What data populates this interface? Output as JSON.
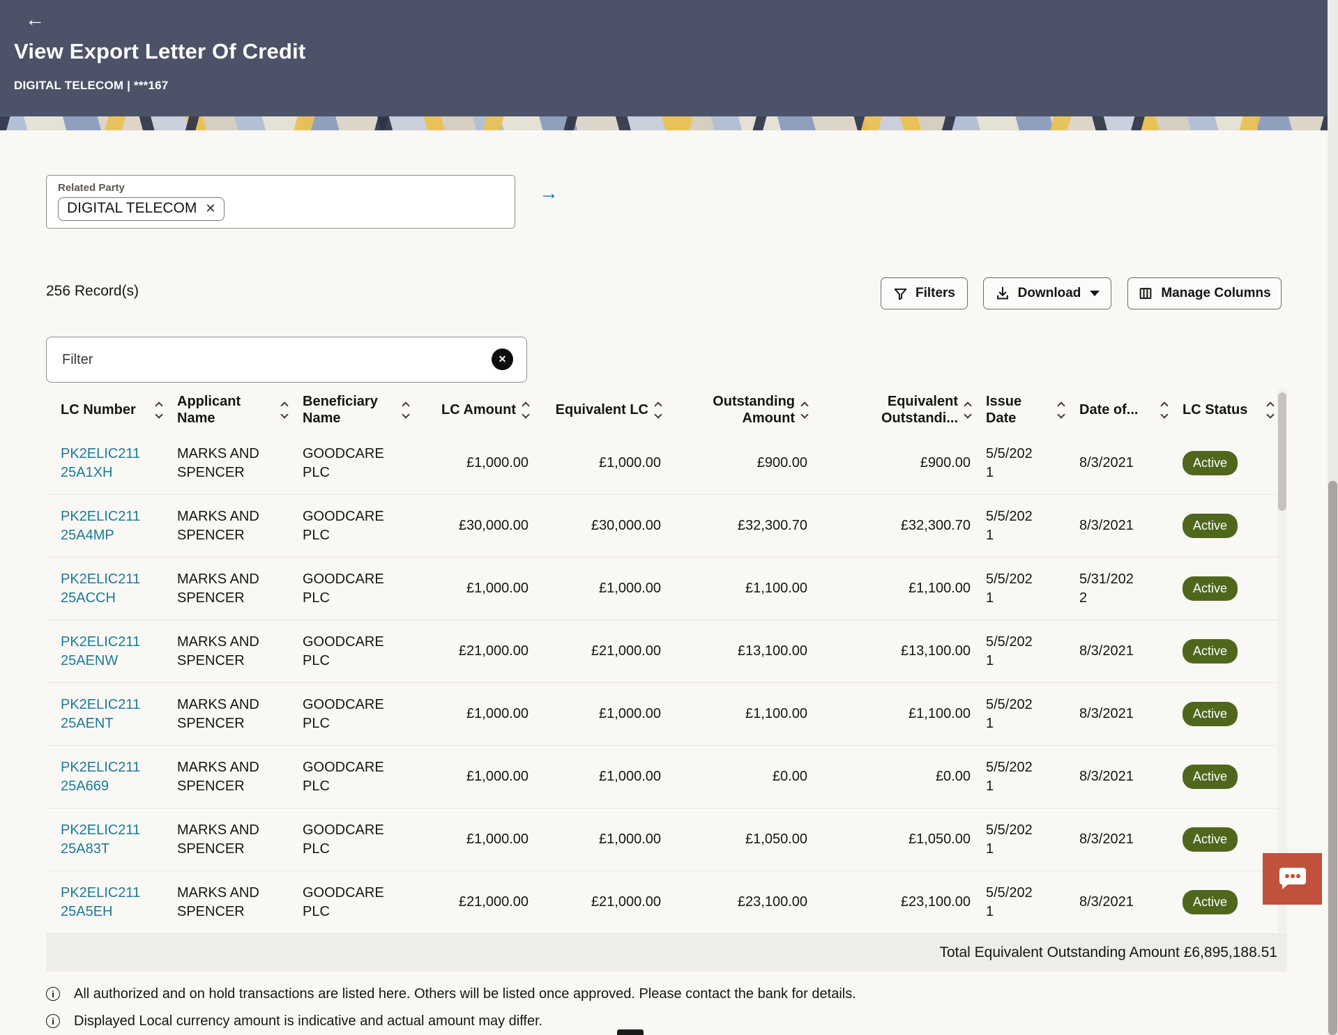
{
  "header": {
    "back_icon": "←",
    "title": "View Export Letter Of Credit",
    "subtitle": "DIGITAL TELECOM | ***167"
  },
  "filters_panel": {
    "related_party_label": "Related Party",
    "related_party_value": "DIGITAL TELECOM",
    "chip_remove_icon": "✕",
    "apply_arrow_icon": "→"
  },
  "toolbar": {
    "record_count": "256 Record(s)",
    "filters_label": "Filters",
    "download_label": "Download",
    "manage_columns_label": "Manage Columns"
  },
  "filter_box": {
    "placeholder": "Filter",
    "clear_icon": "✕"
  },
  "table": {
    "columns": [
      {
        "key": "lc_number",
        "label": "LC Number",
        "align": "left"
      },
      {
        "key": "applicant",
        "label": "Applicant Name",
        "align": "left"
      },
      {
        "key": "beneficiary",
        "label": "Beneficiary Name",
        "align": "left"
      },
      {
        "key": "lc_amount",
        "label": "LC Amount",
        "align": "right"
      },
      {
        "key": "equivalent_lc",
        "label": "Equivalent LC",
        "align": "right"
      },
      {
        "key": "outstanding",
        "label": "Outstanding Amount",
        "align": "right"
      },
      {
        "key": "equivalent_outstanding",
        "label": "Equivalent Outstandi...",
        "align": "right"
      },
      {
        "key": "issue_date",
        "label": "Issue Date",
        "align": "left"
      },
      {
        "key": "date_of",
        "label": "Date of...",
        "align": "left"
      },
      {
        "key": "status",
        "label": "LC Status",
        "align": "left"
      }
    ],
    "rows": [
      {
        "lc_number": "PK2ELIC21125A1XH",
        "applicant": "MARKS AND SPENCER",
        "beneficiary": "GOODCARE PLC",
        "lc_amount": "£1,000.00",
        "equivalent_lc": "£1,000.00",
        "outstanding": "£900.00",
        "equivalent_outstanding": "£900.00",
        "issue_date": "5/5/2021",
        "date_of": "8/3/2021",
        "status": "Active"
      },
      {
        "lc_number": "PK2ELIC21125A4MP",
        "applicant": "MARKS AND SPENCER",
        "beneficiary": "GOODCARE PLC",
        "lc_amount": "£30,000.00",
        "equivalent_lc": "£30,000.00",
        "outstanding": "£32,300.70",
        "equivalent_outstanding": "£32,300.70",
        "issue_date": "5/5/2021",
        "date_of": "8/3/2021",
        "status": "Active"
      },
      {
        "lc_number": "PK2ELIC21125ACCH",
        "applicant": "MARKS AND SPENCER",
        "beneficiary": "GOODCARE PLC",
        "lc_amount": "£1,000.00",
        "equivalent_lc": "£1,000.00",
        "outstanding": "£1,100.00",
        "equivalent_outstanding": "£1,100.00",
        "issue_date": "5/5/2021",
        "date_of": "5/31/2022",
        "status": "Active"
      },
      {
        "lc_number": "PK2ELIC21125AENW",
        "applicant": "MARKS AND SPENCER",
        "beneficiary": "GOODCARE PLC",
        "lc_amount": "£21,000.00",
        "equivalent_lc": "£21,000.00",
        "outstanding": "£13,100.00",
        "equivalent_outstanding": "£13,100.00",
        "issue_date": "5/5/2021",
        "date_of": "8/3/2021",
        "status": "Active"
      },
      {
        "lc_number": "PK2ELIC21125AENT",
        "applicant": "MARKS AND SPENCER",
        "beneficiary": "GOODCARE PLC",
        "lc_amount": "£1,000.00",
        "equivalent_lc": "£1,000.00",
        "outstanding": "£1,100.00",
        "equivalent_outstanding": "£1,100.00",
        "issue_date": "5/5/2021",
        "date_of": "8/3/2021",
        "status": "Active"
      },
      {
        "lc_number": "PK2ELIC21125A669",
        "applicant": "MARKS AND SPENCER",
        "beneficiary": "GOODCARE PLC",
        "lc_amount": "£1,000.00",
        "equivalent_lc": "£1,000.00",
        "outstanding": "£0.00",
        "equivalent_outstanding": "£0.00",
        "issue_date": "5/5/2021",
        "date_of": "8/3/2021",
        "status": "Active"
      },
      {
        "lc_number": "PK2ELIC21125A83T",
        "applicant": "MARKS AND SPENCER",
        "beneficiary": "GOODCARE PLC",
        "lc_amount": "£1,000.00",
        "equivalent_lc": "£1,000.00",
        "outstanding": "£1,050.00",
        "equivalent_outstanding": "£1,050.00",
        "issue_date": "5/5/2021",
        "date_of": "8/3/2021",
        "status": "Active"
      },
      {
        "lc_number": "PK2ELIC21125A5EH",
        "applicant": "MARKS AND SPENCER",
        "beneficiary": "GOODCARE PLC",
        "lc_amount": "£21,000.00",
        "equivalent_lc": "£21,000.00",
        "outstanding": "£23,100.00",
        "equivalent_outstanding": "£23,100.00",
        "issue_date": "5/5/2021",
        "date_of": "8/3/2021",
        "status": "Active"
      }
    ],
    "total_label": "Total Equivalent Outstanding Amount £6,895,188.51"
  },
  "notes": [
    "All authorized and on hold transactions are listed here. Others will be listed once approved. Please contact the bank for details.",
    "Displayed Local currency amount is indicative and actual amount may differ."
  ],
  "colors": {
    "header_bg": "#4c5268",
    "link": "#1b7a9b",
    "badge_green": "#4f671d",
    "chat_accent": "#c1513b",
    "arrow_blue": "#1474b8"
  }
}
